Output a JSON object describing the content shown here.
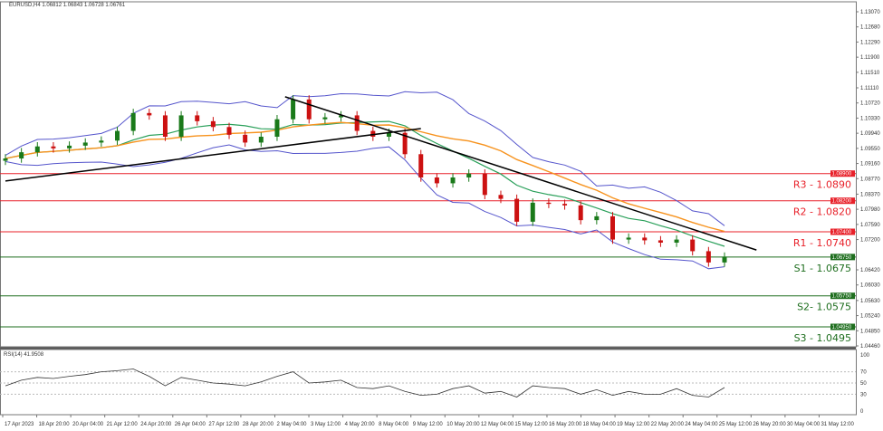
{
  "header": {
    "symbol_info": "EURUSD,H4  1.06812 1.06843 1.06728 1.06761"
  },
  "rsi_header": "RSI(14) 41.9508",
  "colors": {
    "bull": "#1a7a1a",
    "bear": "#cc1111",
    "resistance": "#e8212a",
    "support": "#1e6e1e",
    "ma_fast": "#2aa05a",
    "ma_slow": "#f7931e",
    "bands": "#5555cc",
    "rsi": "#333333"
  },
  "chart_data": {
    "type": "candlestick",
    "title": "EURUSD,H4",
    "ylim": [
      1.0446,
      1.1307
    ],
    "y_ticks": [
      "1.13070",
      "1.12680",
      "1.12290",
      "1.11900",
      "1.11510",
      "1.11110",
      "1.10720",
      "1.10330",
      "1.09940",
      "1.09550",
      "1.09160",
      "1.08770",
      "1.08370",
      "1.07980",
      "1.07590",
      "1.07200",
      "1.06420",
      "1.06030",
      "1.05630",
      "1.05240",
      "1.04850",
      "1.04460"
    ],
    "x_ticks": [
      "17 Apr 2023",
      "18 Apr 20:00",
      "20 Apr 04:00",
      "21 Apr 12:00",
      "24 Apr 20:00",
      "26 Apr 04:00",
      "27 Apr 12:00",
      "28 Apr 20:00",
      "2 May 04:00",
      "3 May 12:00",
      "4 May 20:00",
      "8 May 04:00",
      "9 May 12:00",
      "10 May 20:00",
      "12 May 04:00",
      "15 May 12:00",
      "16 May 20:00",
      "18 May 04:00",
      "19 May 12:00",
      "22 May 20:00",
      "24 May 04:00",
      "25 May 12:00",
      "26 May 20:00",
      "30 May 04:00",
      "31 May 12:00"
    ],
    "closes": [
      1.0929,
      1.0945,
      1.096,
      1.0955,
      1.0962,
      1.097,
      1.0975,
      1.1,
      1.1046,
      1.104,
      1.0985,
      1.104,
      1.1025,
      1.101,
      1.099,
      1.097,
      1.0985,
      1.103,
      1.1081,
      1.103,
      1.1035,
      1.104,
      1.1,
      1.0985,
      1.0995,
      1.094,
      1.088,
      1.0865,
      1.088,
      1.089,
      1.0835,
      1.0825,
      1.0766,
      1.0815,
      1.0812,
      1.0808,
      1.077,
      1.078,
      1.072,
      1.0725,
      1.0718,
      1.0712,
      1.072,
      1.069,
      1.0661,
      1.0676
    ],
    "levels": [
      {
        "label": "R3 - 1.0890",
        "price": 1.089,
        "tag": "1.08900",
        "kind": "resistance"
      },
      {
        "label": "R2 - 1.0820",
        "price": 1.082,
        "tag": "1.08200",
        "kind": "resistance"
      },
      {
        "label": "R1 - 1.0740",
        "price": 1.074,
        "tag": "1.07400",
        "kind": "resistance"
      },
      {
        "label": "S1 - 1.0675",
        "price": 1.0675,
        "tag": "1.06750",
        "kind": "support"
      },
      {
        "label": "S2- 1.0575",
        "price": 1.0575,
        "tag": "1.05750",
        "kind": "support"
      },
      {
        "label": "S3 - 1.0495",
        "price": 1.0495,
        "tag": "1.04950",
        "kind": "support"
      }
    ],
    "trendlines": [
      {
        "name": "uptrend",
        "from": [
          0,
          1.0871
        ],
        "to": [
          26,
          1.1006
        ]
      },
      {
        "name": "downtrend",
        "from": [
          17.5,
          1.1088
        ],
        "to": [
          47,
          1.0693
        ]
      }
    ],
    "rsi": {
      "period": 14,
      "current": "41.9508",
      "ylim": [
        0,
        100
      ],
      "ticks": [
        "100",
        "70",
        "50",
        "30",
        "0"
      ],
      "values": [
        45,
        55,
        60,
        58,
        62,
        65,
        70,
        72,
        75,
        62,
        45,
        60,
        55,
        50,
        48,
        45,
        52,
        62,
        70,
        50,
        52,
        55,
        42,
        40,
        45,
        35,
        28,
        30,
        40,
        45,
        32,
        35,
        25,
        45,
        42,
        40,
        30,
        38,
        28,
        35,
        30,
        30,
        40,
        28,
        25,
        42
      ]
    }
  }
}
